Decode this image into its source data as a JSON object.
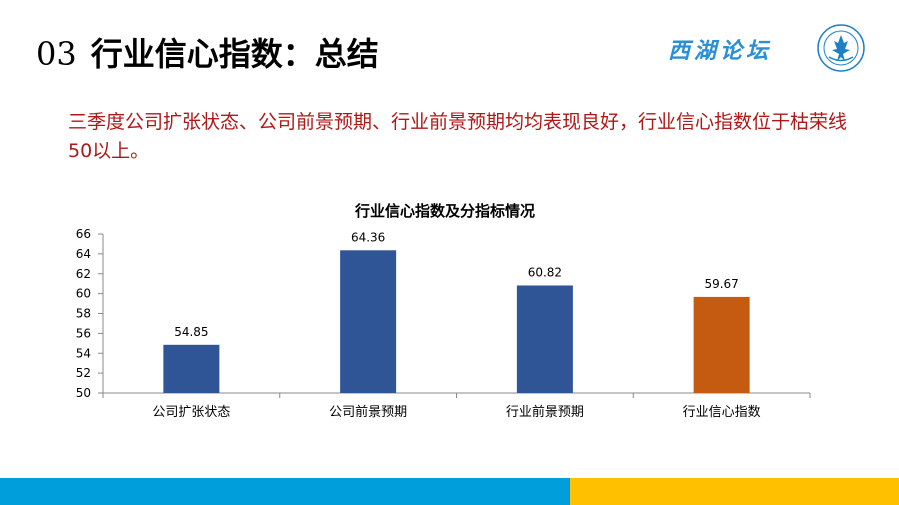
{
  "header": {
    "section_number": "03",
    "title": "行业信心指数：总结",
    "logo_text": "西湖论坛"
  },
  "summary_text": "三季度公司扩张状态、公司前景预期、行业前景预期均均表现良好，行业信心指数位于枯荣线50以上。",
  "colors": {
    "bar_primary": "#2f5597",
    "bar_highlight": "#c55a11",
    "summary_text": "#b01818",
    "band_blue": "#009fdc",
    "band_yellow": "#ffc000"
  },
  "chart_data": {
    "type": "bar",
    "title": "行业信心指数及分指标情况",
    "categories": [
      "公司扩张状态",
      "公司前景预期",
      "行业前景预期",
      "行业信心指数"
    ],
    "values": [
      54.85,
      64.36,
      60.82,
      59.67
    ],
    "value_labels": [
      "54.85",
      "64.36",
      "60.82",
      "59.67"
    ],
    "highlight_index": 3,
    "ylim": [
      50,
      66
    ],
    "yticks": [
      50,
      52,
      54,
      56,
      58,
      60,
      62,
      64,
      66
    ],
    "grid": false,
    "legend": "none"
  }
}
